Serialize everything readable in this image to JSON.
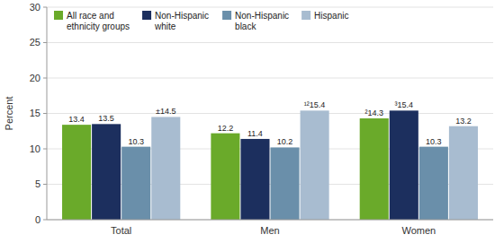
{
  "chart_data": {
    "type": "bar",
    "y_label": "Percent",
    "categories": [
      "Total",
      "Men",
      "Women"
    ],
    "series": [
      {
        "name": "All race and\nethnicity groups",
        "color": "#6aaa2a",
        "values": [
          13.4,
          12.2,
          14.3
        ],
        "value_labels": [
          "13.4",
          "12.2",
          "²14.3"
        ]
      },
      {
        "name": "Non-Hispanic\nwhite",
        "color": "#1c2f5e",
        "values": [
          13.5,
          11.4,
          15.4
        ],
        "value_labels": [
          "13.5",
          "11.4",
          "³15.4"
        ]
      },
      {
        "name": "Non-Hispanic\nblack",
        "color": "#6a8faa",
        "values": [
          10.3,
          10.2,
          10.3
        ]
      },
      {
        "name": "Hispanic",
        "color": "#a8bcd0",
        "values": [
          14.5,
          15.4,
          13.2
        ],
        "value_labels": [
          "±14.5",
          "¹²15.4",
          "13.2"
        ]
      }
    ],
    "ylim": [
      0,
      30
    ],
    "yticks": [
      0,
      5,
      10,
      15,
      20,
      25,
      30
    ],
    "grid": true,
    "legend": "upper left",
    "data_labels": true
  }
}
